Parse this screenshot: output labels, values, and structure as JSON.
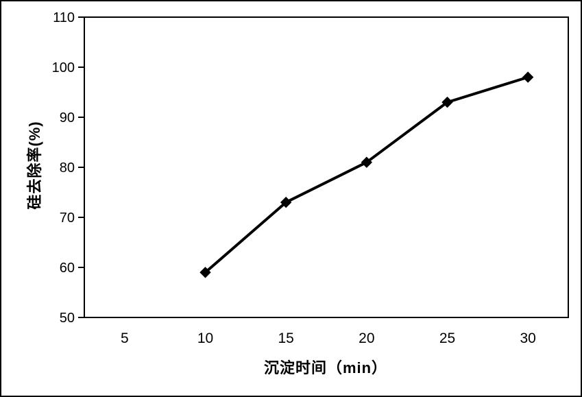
{
  "chart_data": {
    "type": "line",
    "xlabel": "沉淀时间（min）",
    "ylabel": "硅去除率(%)",
    "categories": [
      "5",
      "10",
      "15",
      "20",
      "25",
      "30"
    ],
    "x": [
      10,
      15,
      20,
      25,
      30
    ],
    "values": [
      59,
      73,
      81,
      93,
      98
    ],
    "ylim": [
      50,
      110
    ],
    "y_ticks": [
      50,
      60,
      70,
      80,
      90,
      100,
      110
    ],
    "grid": false,
    "legend": false,
    "marker": "diamond",
    "line_color": "#000000",
    "text_color": "#000000",
    "background": "#ffffff",
    "frame": true
  }
}
